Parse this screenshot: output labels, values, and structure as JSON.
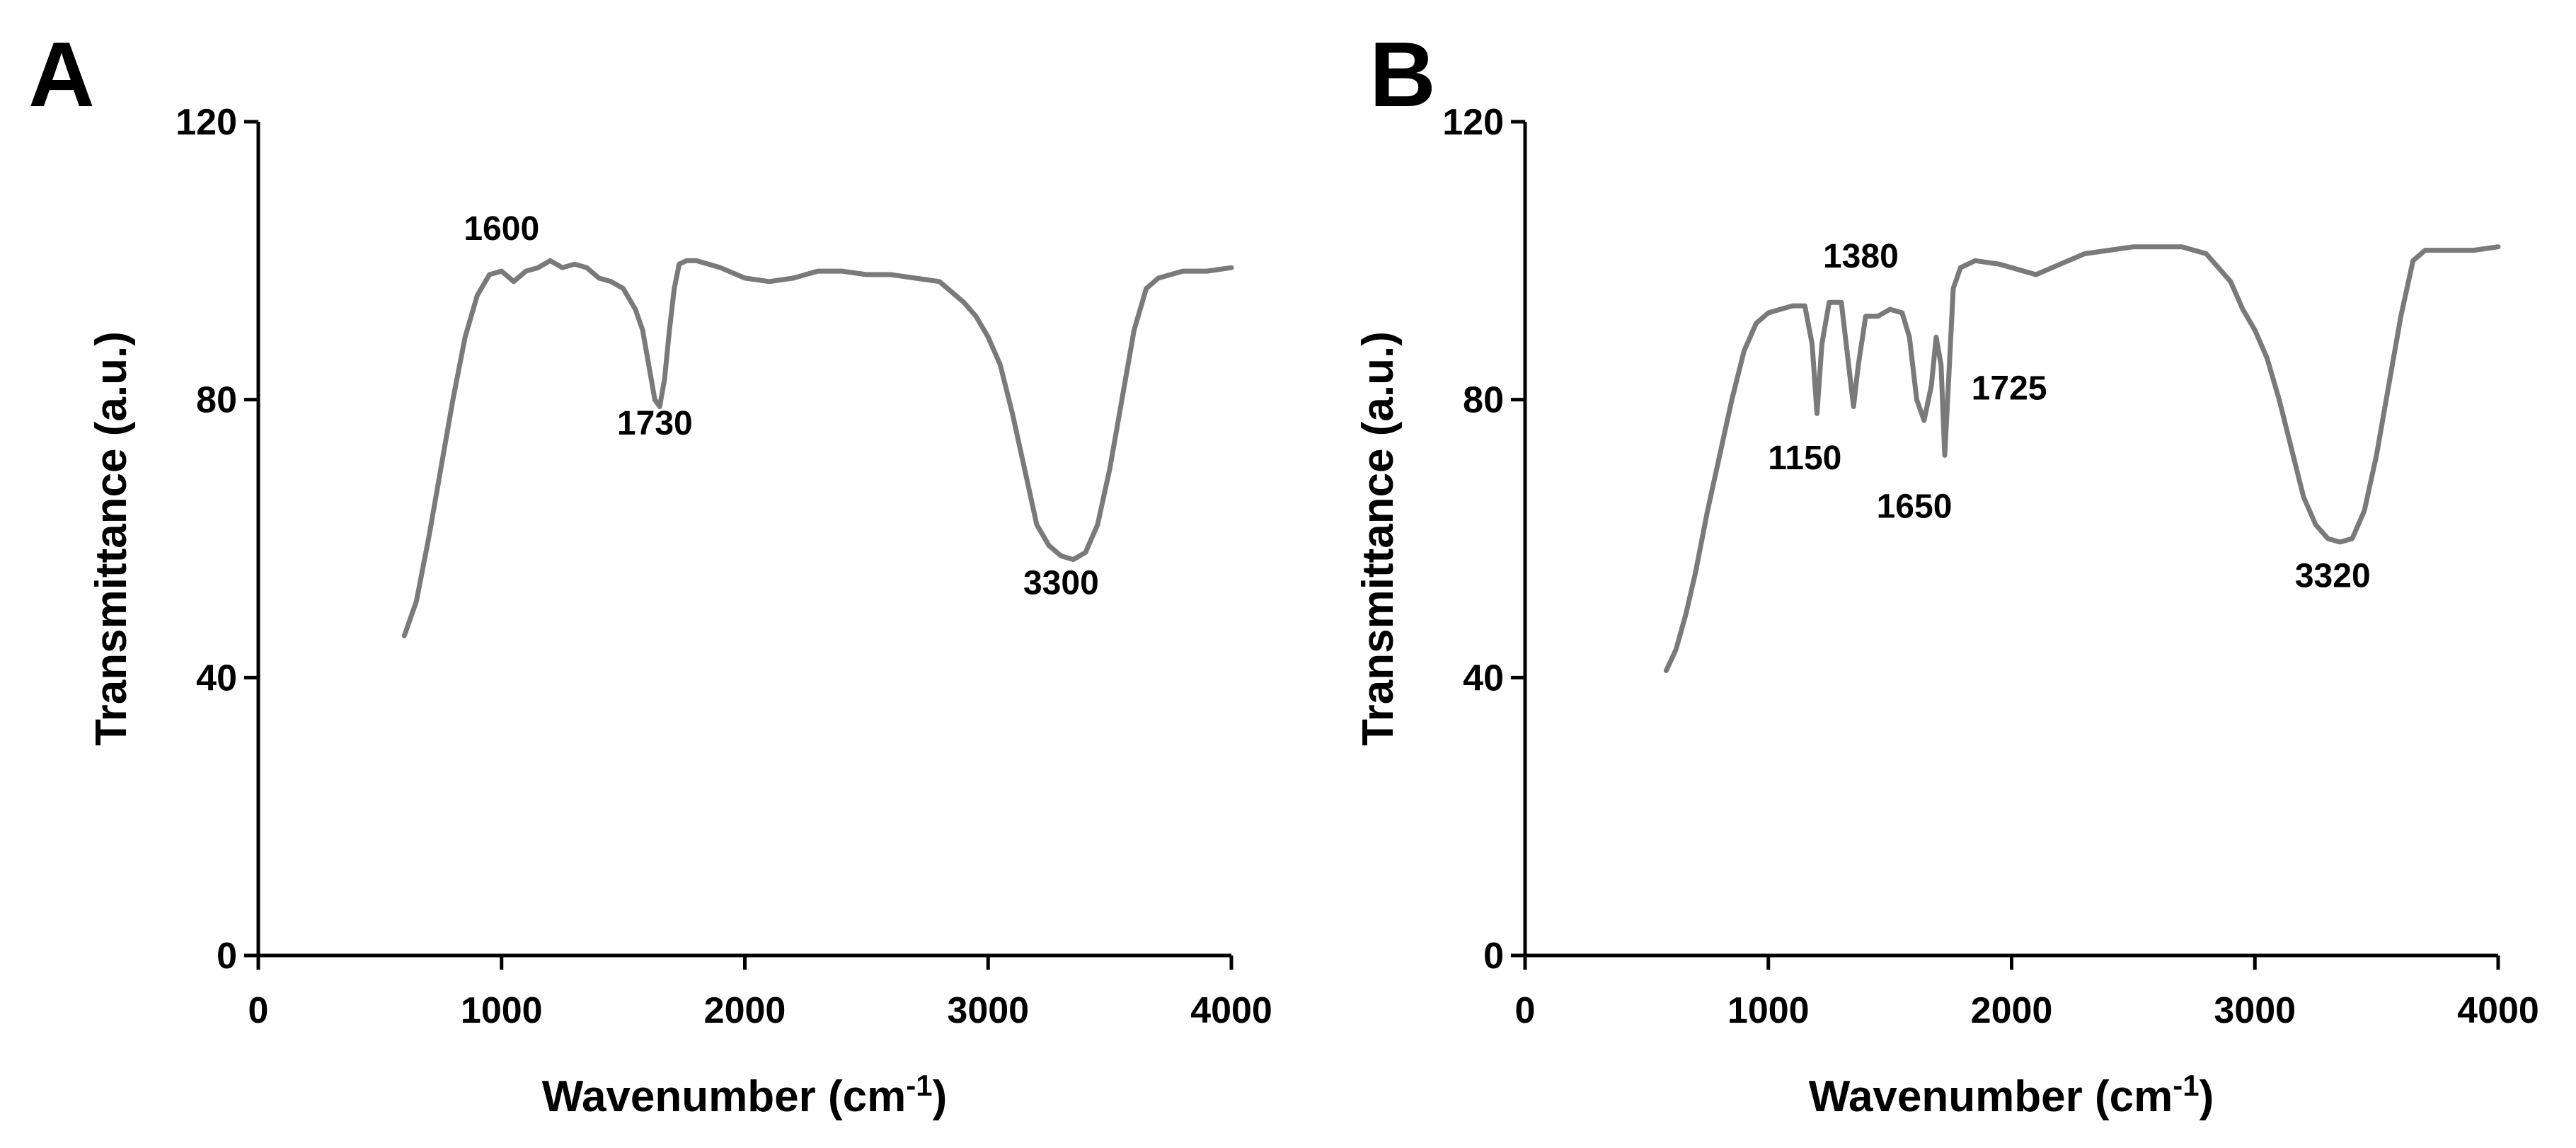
{
  "chart_data": [
    {
      "panel": "A",
      "type": "line",
      "xlabel": "Wavenumber (cm",
      "xlabel_sup": "-1",
      "xlabel_end": ")",
      "ylabel": "Transmittance (a.u.)",
      "xlim": [
        0,
        4000
      ],
      "ylim": [
        0,
        120
      ],
      "xticks": [
        0,
        1000,
        2000,
        3000,
        4000
      ],
      "yticks": [
        0,
        40,
        80,
        120
      ],
      "series": [
        {
          "name": "spectrum",
          "color": "#7a7a7a",
          "x": [
            600,
            650,
            700,
            750,
            800,
            850,
            900,
            950,
            1000,
            1050,
            1100,
            1150,
            1200,
            1250,
            1300,
            1350,
            1400,
            1450,
            1500,
            1550,
            1580,
            1610,
            1630,
            1650,
            1670,
            1690,
            1710,
            1730,
            1760,
            1800,
            1900,
            2000,
            2100,
            2200,
            2300,
            2400,
            2500,
            2600,
            2700,
            2800,
            2900,
            2950,
            3000,
            3050,
            3100,
            3150,
            3200,
            3250,
            3300,
            3350,
            3400,
            3450,
            3500,
            3550,
            3600,
            3650,
            3700,
            3800,
            3900,
            4000
          ],
          "y": [
            46,
            51,
            60,
            70,
            80,
            89,
            95,
            98,
            98.5,
            97,
            98.5,
            99,
            100,
            99,
            99.5,
            99,
            97.5,
            97,
            96,
            93,
            90,
            84,
            80,
            79,
            83,
            90,
            96,
            99.5,
            100,
            100,
            99,
            97.5,
            97,
            97.5,
            98.5,
            98.5,
            98,
            98,
            97.5,
            97,
            94,
            92,
            89,
            85,
            78,
            70,
            62,
            59,
            57.5,
            57,
            58,
            62,
            70,
            80,
            90,
            96,
            97.5,
            98.5,
            98.5,
            99
          ]
        }
      ],
      "annotations": [
        {
          "text": "1600",
          "x": 1000,
          "y": 103
        },
        {
          "text": "1730",
          "x": 1630,
          "y": 75
        },
        {
          "text": "3300",
          "x": 3300,
          "y": 52
        }
      ]
    },
    {
      "panel": "B",
      "type": "line",
      "xlabel": "Wavenumber (cm",
      "xlabel_sup": "-1",
      "xlabel_end": ")",
      "ylabel": "Transmittance (a.u.)",
      "xlim": [
        0,
        4000
      ],
      "ylim": [
        0,
        120
      ],
      "xticks": [
        0,
        1000,
        2000,
        3000,
        4000
      ],
      "yticks": [
        0,
        40,
        80,
        120
      ],
      "series": [
        {
          "name": "spectrum",
          "color": "#7a7a7a",
          "x": [
            580,
            620,
            660,
            700,
            750,
            800,
            850,
            900,
            950,
            1000,
            1050,
            1100,
            1150,
            1180,
            1200,
            1220,
            1250,
            1300,
            1330,
            1350,
            1370,
            1400,
            1450,
            1500,
            1550,
            1580,
            1610,
            1640,
            1670,
            1690,
            1710,
            1725,
            1740,
            1760,
            1790,
            1850,
            1950,
            2050,
            2100,
            2200,
            2300,
            2400,
            2500,
            2600,
            2700,
            2800,
            2850,
            2900,
            2950,
            3000,
            3050,
            3100,
            3150,
            3200,
            3250,
            3300,
            3350,
            3400,
            3450,
            3500,
            3550,
            3600,
            3650,
            3700,
            3800,
            3900,
            4000
          ],
          "y": [
            41,
            44,
            49,
            55,
            64,
            72,
            80,
            87,
            91,
            92.5,
            93,
            93.5,
            93.5,
            88,
            78,
            88,
            94,
            94,
            85,
            79,
            85,
            92,
            92,
            93,
            92.5,
            89,
            80,
            77,
            82,
            89,
            85,
            72,
            82,
            96,
            99,
            100,
            99.5,
            98.5,
            98,
            99.5,
            101,
            101.5,
            102,
            102,
            102,
            101,
            99,
            97,
            93,
            90,
            86,
            80,
            73,
            66,
            62,
            60,
            59.5,
            60,
            64,
            72,
            82,
            92,
            100,
            101.5,
            101.5,
            101.5,
            102
          ]
        }
      ],
      "annotations": [
        {
          "text": "1380",
          "x": 1380,
          "y": 99
        },
        {
          "text": "1150",
          "x": 1150,
          "y": 70
        },
        {
          "text": "1725",
          "x": 1990,
          "y": 80
        },
        {
          "text": "1650",
          "x": 1600,
          "y": 63
        },
        {
          "text": "3320",
          "x": 3320,
          "y": 53
        }
      ]
    }
  ]
}
